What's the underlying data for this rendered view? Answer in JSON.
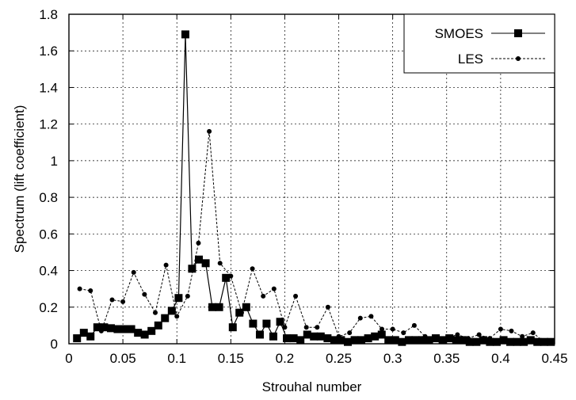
{
  "chart_data": {
    "type": "line",
    "title": "",
    "xlabel": "Strouhal number",
    "ylabel": "Spectrum (lift coefficient)",
    "xlim": [
      0,
      0.45
    ],
    "ylim": [
      0,
      1.8
    ],
    "xticks": [
      "0",
      "0.05",
      "0.1",
      "0.15",
      "0.2",
      "0.25",
      "0.3",
      "0.35",
      "0.4",
      "0.45"
    ],
    "yticks": [
      "0",
      "0.2",
      "0.4",
      "0.6",
      "0.8",
      "1",
      "1.2",
      "1.4",
      "1.6",
      "1.8"
    ],
    "grid": true,
    "legend_position": "top-right",
    "series": [
      {
        "name": "SMOES",
        "line_style": "solid",
        "marker": "square",
        "x": [
          0.0075,
          0.0138,
          0.02,
          0.0263,
          0.0326,
          0.0389,
          0.0451,
          0.0514,
          0.0577,
          0.064,
          0.0702,
          0.0765,
          0.0828,
          0.089,
          0.0953,
          0.1016,
          0.1079,
          0.1141,
          0.1204,
          0.1267,
          0.1329,
          0.1392,
          0.1455,
          0.1518,
          0.158,
          0.1643,
          0.1706,
          0.1769,
          0.1831,
          0.1894,
          0.1957,
          0.2019,
          0.2082,
          0.2145,
          0.2208,
          0.227,
          0.2333,
          0.2396,
          0.2459,
          0.2521,
          0.2584,
          0.2647,
          0.2709,
          0.2772,
          0.2835,
          0.2898,
          0.296,
          0.3023,
          0.3086,
          0.3149,
          0.3211,
          0.3274,
          0.3337,
          0.3399,
          0.3462,
          0.3525,
          0.3588,
          0.365,
          0.3713,
          0.3776,
          0.3838,
          0.3901,
          0.3964,
          0.4027,
          0.4089,
          0.4152,
          0.4215,
          0.4278,
          0.434,
          0.4403,
          0.4466
        ],
        "y": [
          0.03,
          0.06,
          0.04,
          0.09,
          0.09,
          0.085,
          0.08,
          0.08,
          0.08,
          0.06,
          0.05,
          0.07,
          0.1,
          0.14,
          0.18,
          0.25,
          1.69,
          0.41,
          0.46,
          0.44,
          0.2,
          0.2,
          0.36,
          0.09,
          0.17,
          0.2,
          0.11,
          0.05,
          0.11,
          0.04,
          0.12,
          0.03,
          0.03,
          0.02,
          0.05,
          0.04,
          0.04,
          0.03,
          0.02,
          0.02,
          0.01,
          0.02,
          0.02,
          0.03,
          0.04,
          0.05,
          0.02,
          0.02,
          0.01,
          0.02,
          0.02,
          0.02,
          0.02,
          0.03,
          0.02,
          0.03,
          0.02,
          0.02,
          0.01,
          0.01,
          0.02,
          0.01,
          0.01,
          0.02,
          0.01,
          0.01,
          0.01,
          0.02,
          0.01,
          0.01,
          0.01
        ]
      },
      {
        "name": "LES",
        "line_style": "dashed",
        "marker": "circle",
        "x": [
          0.01,
          0.02,
          0.03,
          0.04,
          0.05,
          0.06,
          0.07,
          0.08,
          0.09,
          0.1,
          0.11,
          0.12,
          0.13,
          0.14,
          0.15,
          0.16,
          0.17,
          0.18,
          0.19,
          0.2,
          0.21,
          0.22,
          0.23,
          0.24,
          0.25,
          0.26,
          0.27,
          0.28,
          0.29,
          0.3,
          0.31,
          0.32,
          0.33,
          0.34,
          0.35,
          0.36,
          0.37,
          0.38,
          0.39,
          0.4,
          0.41,
          0.42,
          0.43,
          0.44
        ],
        "y": [
          0.3,
          0.29,
          0.07,
          0.24,
          0.23,
          0.39,
          0.27,
          0.17,
          0.43,
          0.15,
          0.26,
          0.55,
          1.16,
          0.44,
          0.37,
          0.17,
          0.41,
          0.26,
          0.3,
          0.09,
          0.26,
          0.09,
          0.09,
          0.2,
          0.04,
          0.06,
          0.14,
          0.15,
          0.08,
          0.08,
          0.06,
          0.1,
          0.04,
          0.03,
          0.03,
          0.05,
          0.03,
          0.05,
          0.03,
          0.08,
          0.07,
          0.04,
          0.06,
          0.01
        ]
      }
    ]
  }
}
